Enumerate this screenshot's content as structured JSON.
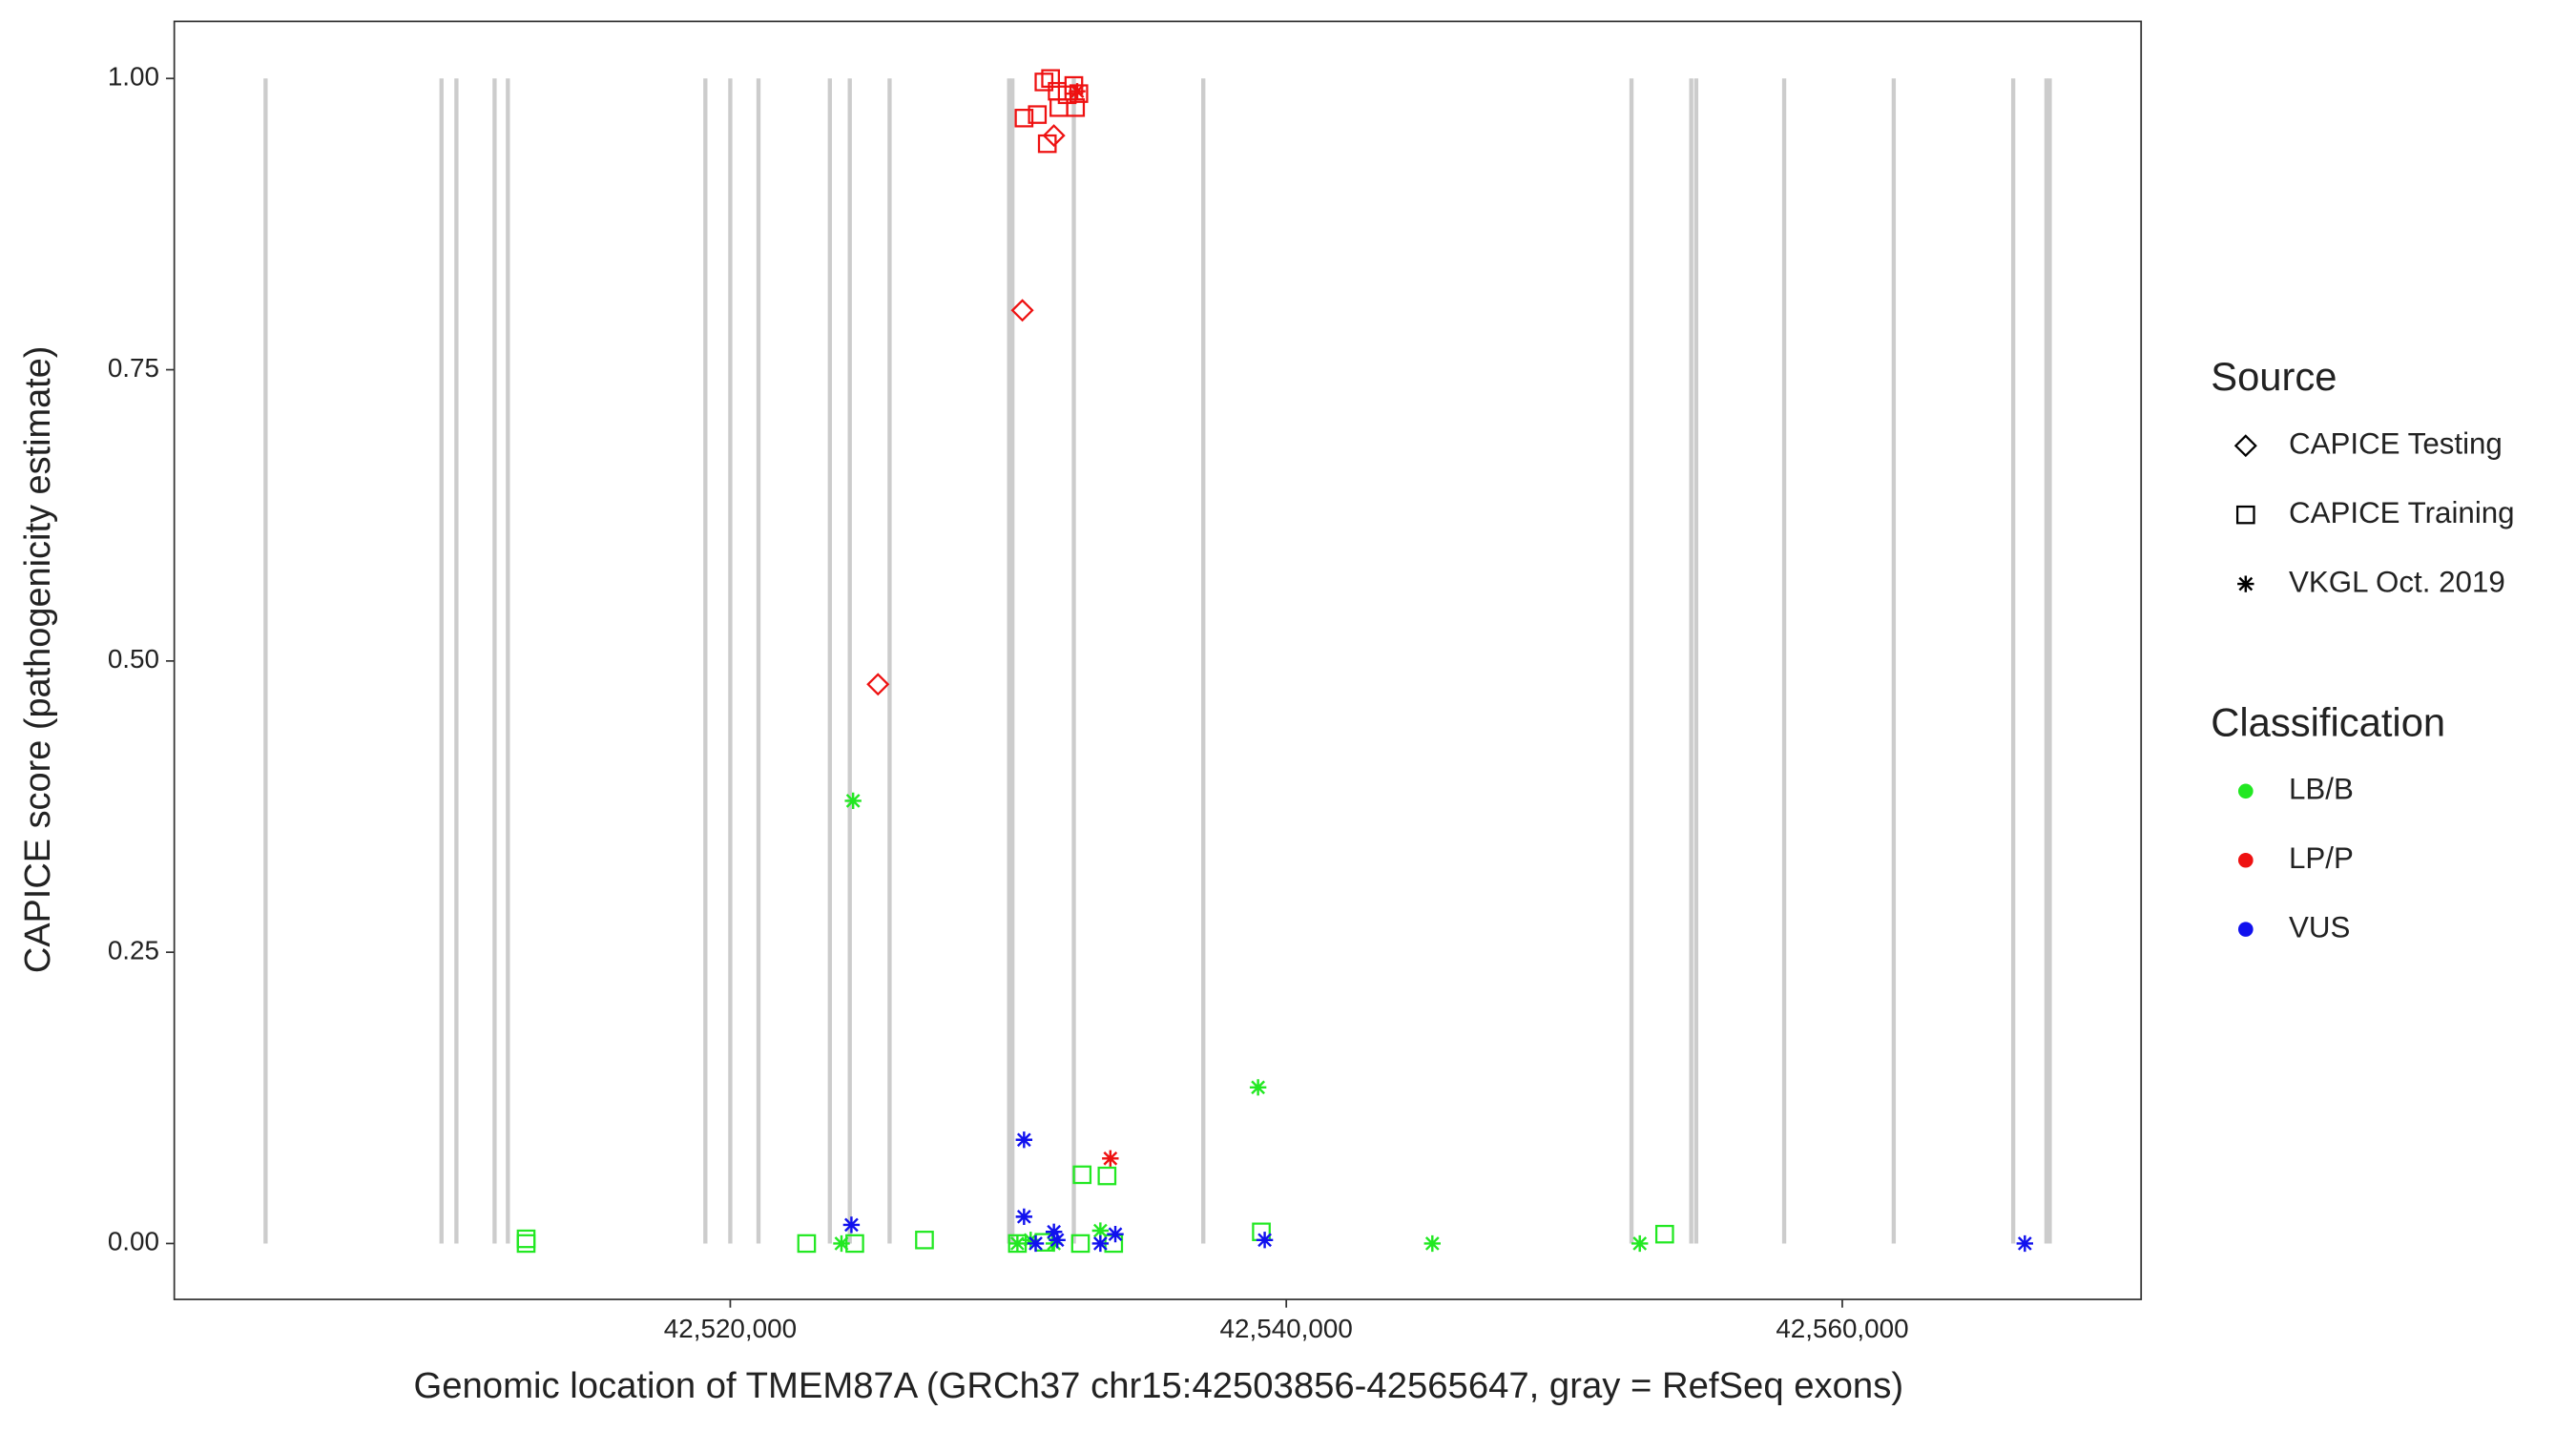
{
  "chart_data": {
    "type": "scatter",
    "x_label": "Genomic location of TMEM87A (GRCh37 chr15:42503856-42565647, gray = RefSeq exons)",
    "y_label": "CAPICE score (pathogenicity estimate)",
    "xlim": [
      42500000,
      42570750
    ],
    "ylim": [
      -0.048,
      1.049
    ],
    "xticks": [
      {
        "value": 42520000,
        "label": "42,520,000"
      },
      {
        "value": 42540000,
        "label": "42,540,000"
      },
      {
        "value": 42560000,
        "label": "42,560,000"
      }
    ],
    "yticks": [
      {
        "value": 0,
        "label": "0.00"
      },
      {
        "value": 0.25,
        "label": "0.25"
      },
      {
        "value": 0.5,
        "label": "0.50"
      },
      {
        "value": 0.75,
        "label": "0.75"
      },
      {
        "value": 1,
        "label": "1.00"
      }
    ],
    "exon_color": "#cccccc",
    "exons": [
      42503284,
      42509612,
      42510149,
      42511522,
      42512000,
      42519104,
      42520000,
      42521015,
      42523582,
      42524299,
      42525731,
      42530030,
      42530149,
      42532358,
      42537015,
      42552418,
      42554567,
      42554746,
      42557910,
      42561851,
      42566149,
      42567343,
      42567463
    ],
    "legend_source_title": "Source",
    "sources": [
      {
        "name": "CAPICE Testing",
        "shape": "diamond"
      },
      {
        "name": "CAPICE Training",
        "shape": "square"
      },
      {
        "name": "VKGL Oct. 2019",
        "shape": "asterisk"
      }
    ],
    "legend_class_title": "Classification",
    "classifications": [
      {
        "name": "LB/B",
        "color": "#22e822"
      },
      {
        "name": "LP/P",
        "color": "#ee1111"
      },
      {
        "name": "VUS",
        "color": "#1111ee"
      }
    ],
    "series": [
      {
        "source": "CAPICE Testing",
        "classification": "LP/P",
        "x": [
          42530507,
          42525313,
          42531642
        ],
        "y": [
          0.801,
          0.48,
          0.951
        ]
      },
      {
        "source": "CAPICE Training",
        "classification": "LP/P",
        "x": [
          42530567,
          42531045,
          42531403,
          42531284,
          42531522,
          42531761,
          42531821,
          42532358,
          42532418,
          42532537,
          42532119
        ],
        "y": [
          0.966,
          0.969,
          0.944,
          0.997,
          1.0,
          0.989,
          0.975,
          0.994,
          0.975,
          0.987,
          0.986
        ]
      },
      {
        "source": "VKGL Oct. 2019",
        "classification": "LP/P",
        "x": [
          42533672,
          42532478
        ],
        "y": [
          0.073,
          0.989
        ]
      },
      {
        "source": "CAPICE Training",
        "classification": "LB/B",
        "x": [
          42512657,
          42512657,
          42522746,
          42524478,
          42526985,
          42532657,
          42533552,
          42553611,
          42539104,
          42530328,
          42531284,
          42532597,
          42533791
        ],
        "y": [
          0.004,
          0,
          0,
          0,
          0.003,
          0.059,
          0.058,
          0.008,
          0.01,
          0,
          0.001,
          0,
          0
        ]
      },
      {
        "source": "VKGL Oct. 2019",
        "classification": "LB/B",
        "x": [
          42524418,
          42538985,
          42545254,
          42552716,
          42524000,
          42530328,
          42530806,
          42533313,
          42531642
        ],
        "y": [
          0.38,
          0.134,
          0,
          0,
          0,
          0,
          0.003,
          0.011,
          0
        ]
      },
      {
        "source": "VKGL Oct. 2019",
        "classification": "VUS",
        "x": [
          42530567,
          42530567,
          42524358,
          42531642,
          42531761,
          42533313,
          42533851,
          42539224,
          42566567,
          42530985
        ],
        "y": [
          0.089,
          0.023,
          0.016,
          0.01,
          0.003,
          0,
          0.008,
          0.003,
          0,
          0
        ]
      }
    ]
  }
}
